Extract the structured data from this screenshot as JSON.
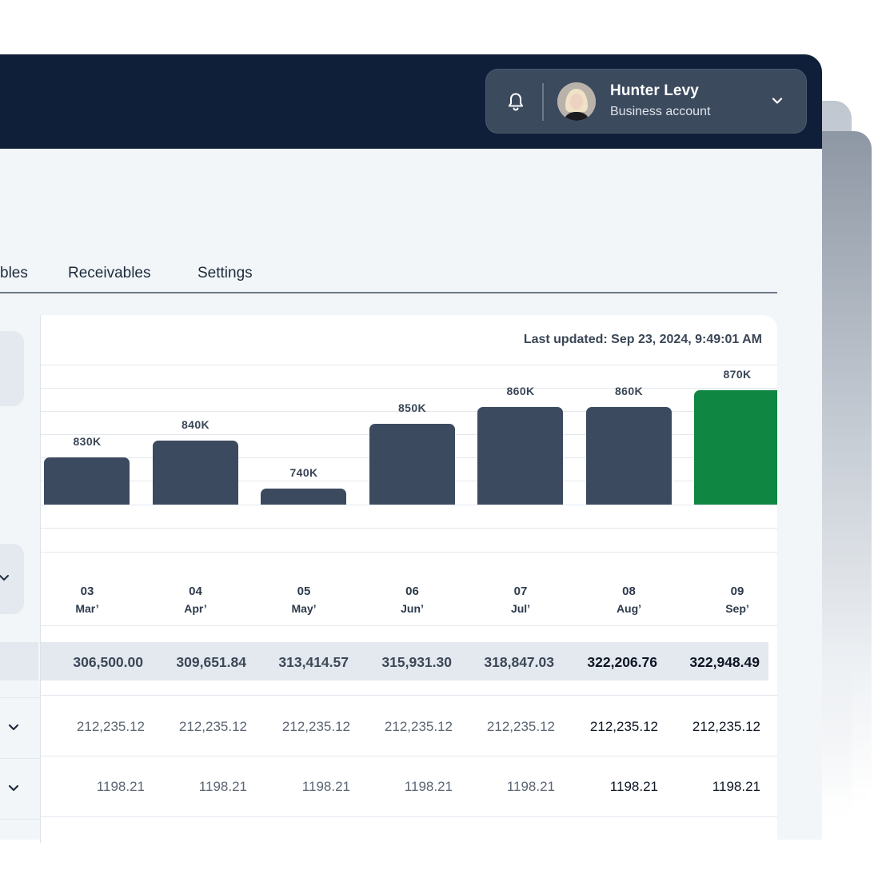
{
  "profile": {
    "name": "Hunter Levy",
    "account_type": "Business account"
  },
  "tabs": [
    {
      "label": "bles"
    },
    {
      "label": "Receivables"
    },
    {
      "label": "Settings"
    }
  ],
  "last_updated": "Last updated: Sep 23, 2024, 9:49:01 AM",
  "colors": {
    "header": "#0f1f3a",
    "bar": "#3b4a5f",
    "bar_current": "#0f8641"
  },
  "chart_data": {
    "type": "bar",
    "categories": [
      "Mar'",
      "Apr'",
      "May'",
      "Jun'",
      "Jul'",
      "Aug'",
      "Sep'"
    ],
    "values": [
      830,
      840,
      740,
      850,
      860,
      860,
      870
    ],
    "value_labels": [
      "830K",
      "840K",
      "740K",
      "850K",
      "860K",
      "860K",
      "870K"
    ],
    "units": "K",
    "highlighted_category": "Sep'"
  },
  "months": [
    {
      "num": "03",
      "name": "Mar’"
    },
    {
      "num": "04",
      "name": "Apr’"
    },
    {
      "num": "05",
      "name": "May’"
    },
    {
      "num": "06",
      "name": "Jun’"
    },
    {
      "num": "07",
      "name": "Jul’"
    },
    {
      "num": "08",
      "name": "Aug’"
    },
    {
      "num": "09",
      "name": "Sep’"
    }
  ],
  "totals": [
    "306,500.00",
    "309,651.84",
    "313,414.57",
    "315,931.30",
    "318,847.03",
    "322,206.76",
    "322,948.49"
  ],
  "row_a": [
    "212,235.12",
    "212,235.12",
    "212,235.12",
    "212,235.12",
    "212,235.12",
    "212,235.12",
    "212,235.12"
  ],
  "row_b": [
    "1198.21",
    "1198.21",
    "1198.21",
    "1198.21",
    "1198.21",
    "1198.21",
    "1198.21"
  ]
}
